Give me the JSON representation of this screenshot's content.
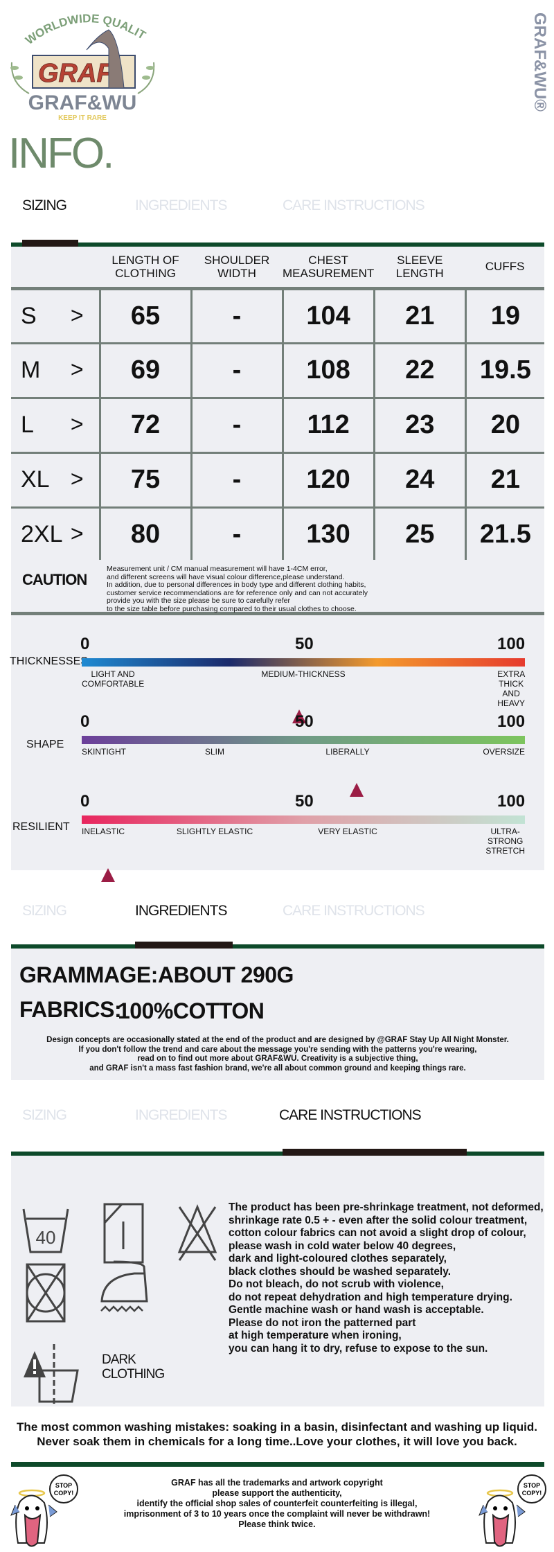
{
  "brand": {
    "logo_arc": "WORLDWIDE QUALITY",
    "logo_box": "GRAF",
    "logo_name": "GRAF&WU",
    "logo_tagline": "KEEP IT RARE",
    "side_mark": "GRAF&WU®"
  },
  "title": "INFO.",
  "tabs": [
    "SIZING",
    "INGREDIENTS",
    "CARE INSTRUCTIONS"
  ],
  "sizing": {
    "headers": [
      "",
      "LENGTH OF CLOTHING",
      "SHOULDER WIDTH",
      "CHEST MEASUREMENT",
      "SLEEVE LENGTH",
      "CUFFS"
    ],
    "rows": [
      {
        "size": "S",
        "arrow": ">",
        "values": [
          "65",
          "-",
          "104",
          "21",
          "19"
        ]
      },
      {
        "size": "M",
        "arrow": ">",
        "values": [
          "69",
          "-",
          "108",
          "22",
          "19.5"
        ]
      },
      {
        "size": "L",
        "arrow": ">",
        "values": [
          "72",
          "-",
          "112",
          "23",
          "20"
        ]
      },
      {
        "size": "XL",
        "arrow": ">",
        "values": [
          "75",
          "-",
          "120",
          "24",
          "21"
        ]
      },
      {
        "size": "2XL",
        "arrow": ">",
        "values": [
          "80",
          "-",
          "130",
          "25",
          "21.5"
        ]
      }
    ],
    "caution_title": "CAUTION",
    "caution_lines": [
      "Measurement unit / CM manual measurement will have 1-4CM error,",
      "and different screens will have visual colour difference,please understand.",
      "In addition, due to personal differences in body type and different clothing habits,",
      "customer service recommendations are for reference only and can not accurately",
      "provide you with the size please be sure to carefully refer",
      "to the size table before purchasing compared to their usual clothes to choose."
    ]
  },
  "scales": [
    {
      "label": "THICKNESSES",
      "ticks": [
        "0",
        "50",
        "100"
      ],
      "value": 49,
      "descs": [
        "LIGHT AND\nCOMFORTABLE",
        "MEDIUM-THICKNESS",
        "EXTRA THICK\nAND HEAVY"
      ],
      "gradient": [
        "#1f8ad2",
        "#1b2a6b",
        "#f39a2c",
        "#e63b2e"
      ]
    },
    {
      "label": "SHAPE",
      "ticks": [
        "0",
        "50",
        "100"
      ],
      "value": 62,
      "descs": [
        "SKINTIGHT",
        "SLIM",
        "LIBERALLY",
        "OVERSIZE"
      ],
      "gradient": [
        "#6c3f9a",
        "#6f9a86",
        "#7dc55e"
      ]
    },
    {
      "label": "RESILIENT",
      "ticks": [
        "0",
        "50",
        "100"
      ],
      "value": 6,
      "descs": [
        "INELASTIC",
        "SLIGHTLY ELASTIC",
        "VERY ELASTIC",
        "ULTRA-STRONG\nSTRETCH"
      ],
      "gradient": [
        "#e8265e",
        "#e0a0a8",
        "#c2e3d4"
      ]
    }
  ],
  "ingredients": {
    "grammage_label": "GRAMMAGE:",
    "grammage_value": "ABOUT 290G",
    "fabrics_label": "FABRICS:",
    "fabrics_value": "100%COTTON",
    "note_lines": [
      "Design concepts are occasionally stated at the end of the product and are designed by @GRAF Stay Up All Night Monster.",
      "If you don't follow the trend and care about the message you're sending with the patterns you're wearing,",
      "read on to find out more about GRAF&WU. Creativity is a subjective thing,",
      "and GRAF isn't a mass fast fashion brand, we're all about common ground and keeping things rare."
    ]
  },
  "care": {
    "wash_temp": "40",
    "dark_label": "DARK\nCLOTHING",
    "lines": [
      "The product has been pre-shrinkage treatment, not deformed,",
      "shrinkage rate 0.5 + - even after the solid colour treatment,",
      "cotton colour fabrics can not avoid a slight drop of colour,",
      "please wash in cold water below 40 degrees,",
      "dark and light-coloured clothes separately,",
      "black clothes should be washed separately.",
      "Do not bleach, do not scrub with violence,",
      "do not repeat dehydration and high temperature drying.",
      "Gentle machine wash or hand wash is acceptable.",
      "Please do not iron the patterned part",
      "at high temperature when ironing,",
      "you can hang it to dry, refuse to expose to the sun."
    ],
    "mistakes": [
      "The most common washing mistakes: soaking in a basin, disinfectant and washing up liquid.",
      "Never soak them in chemicals for a long time..Love your clothes, it will love you back."
    ]
  },
  "footer": {
    "sticker": "STOP COPY!",
    "lines": [
      "GRAF has all the trademarks and artwork copyright",
      "please support the authenticity,",
      "identify the official shop sales of counterfeit counterfeiting is illegal,",
      "imprisonment of 3 to 10 years once the complaint will never be withdrawn!",
      "Please think twice."
    ]
  },
  "colors": {
    "accent_green": "#0d4a2a",
    "title_green": "#6e8a6b",
    "panel": "#eeeff3",
    "grid": "#737f79",
    "marker": "#9b1d45"
  }
}
